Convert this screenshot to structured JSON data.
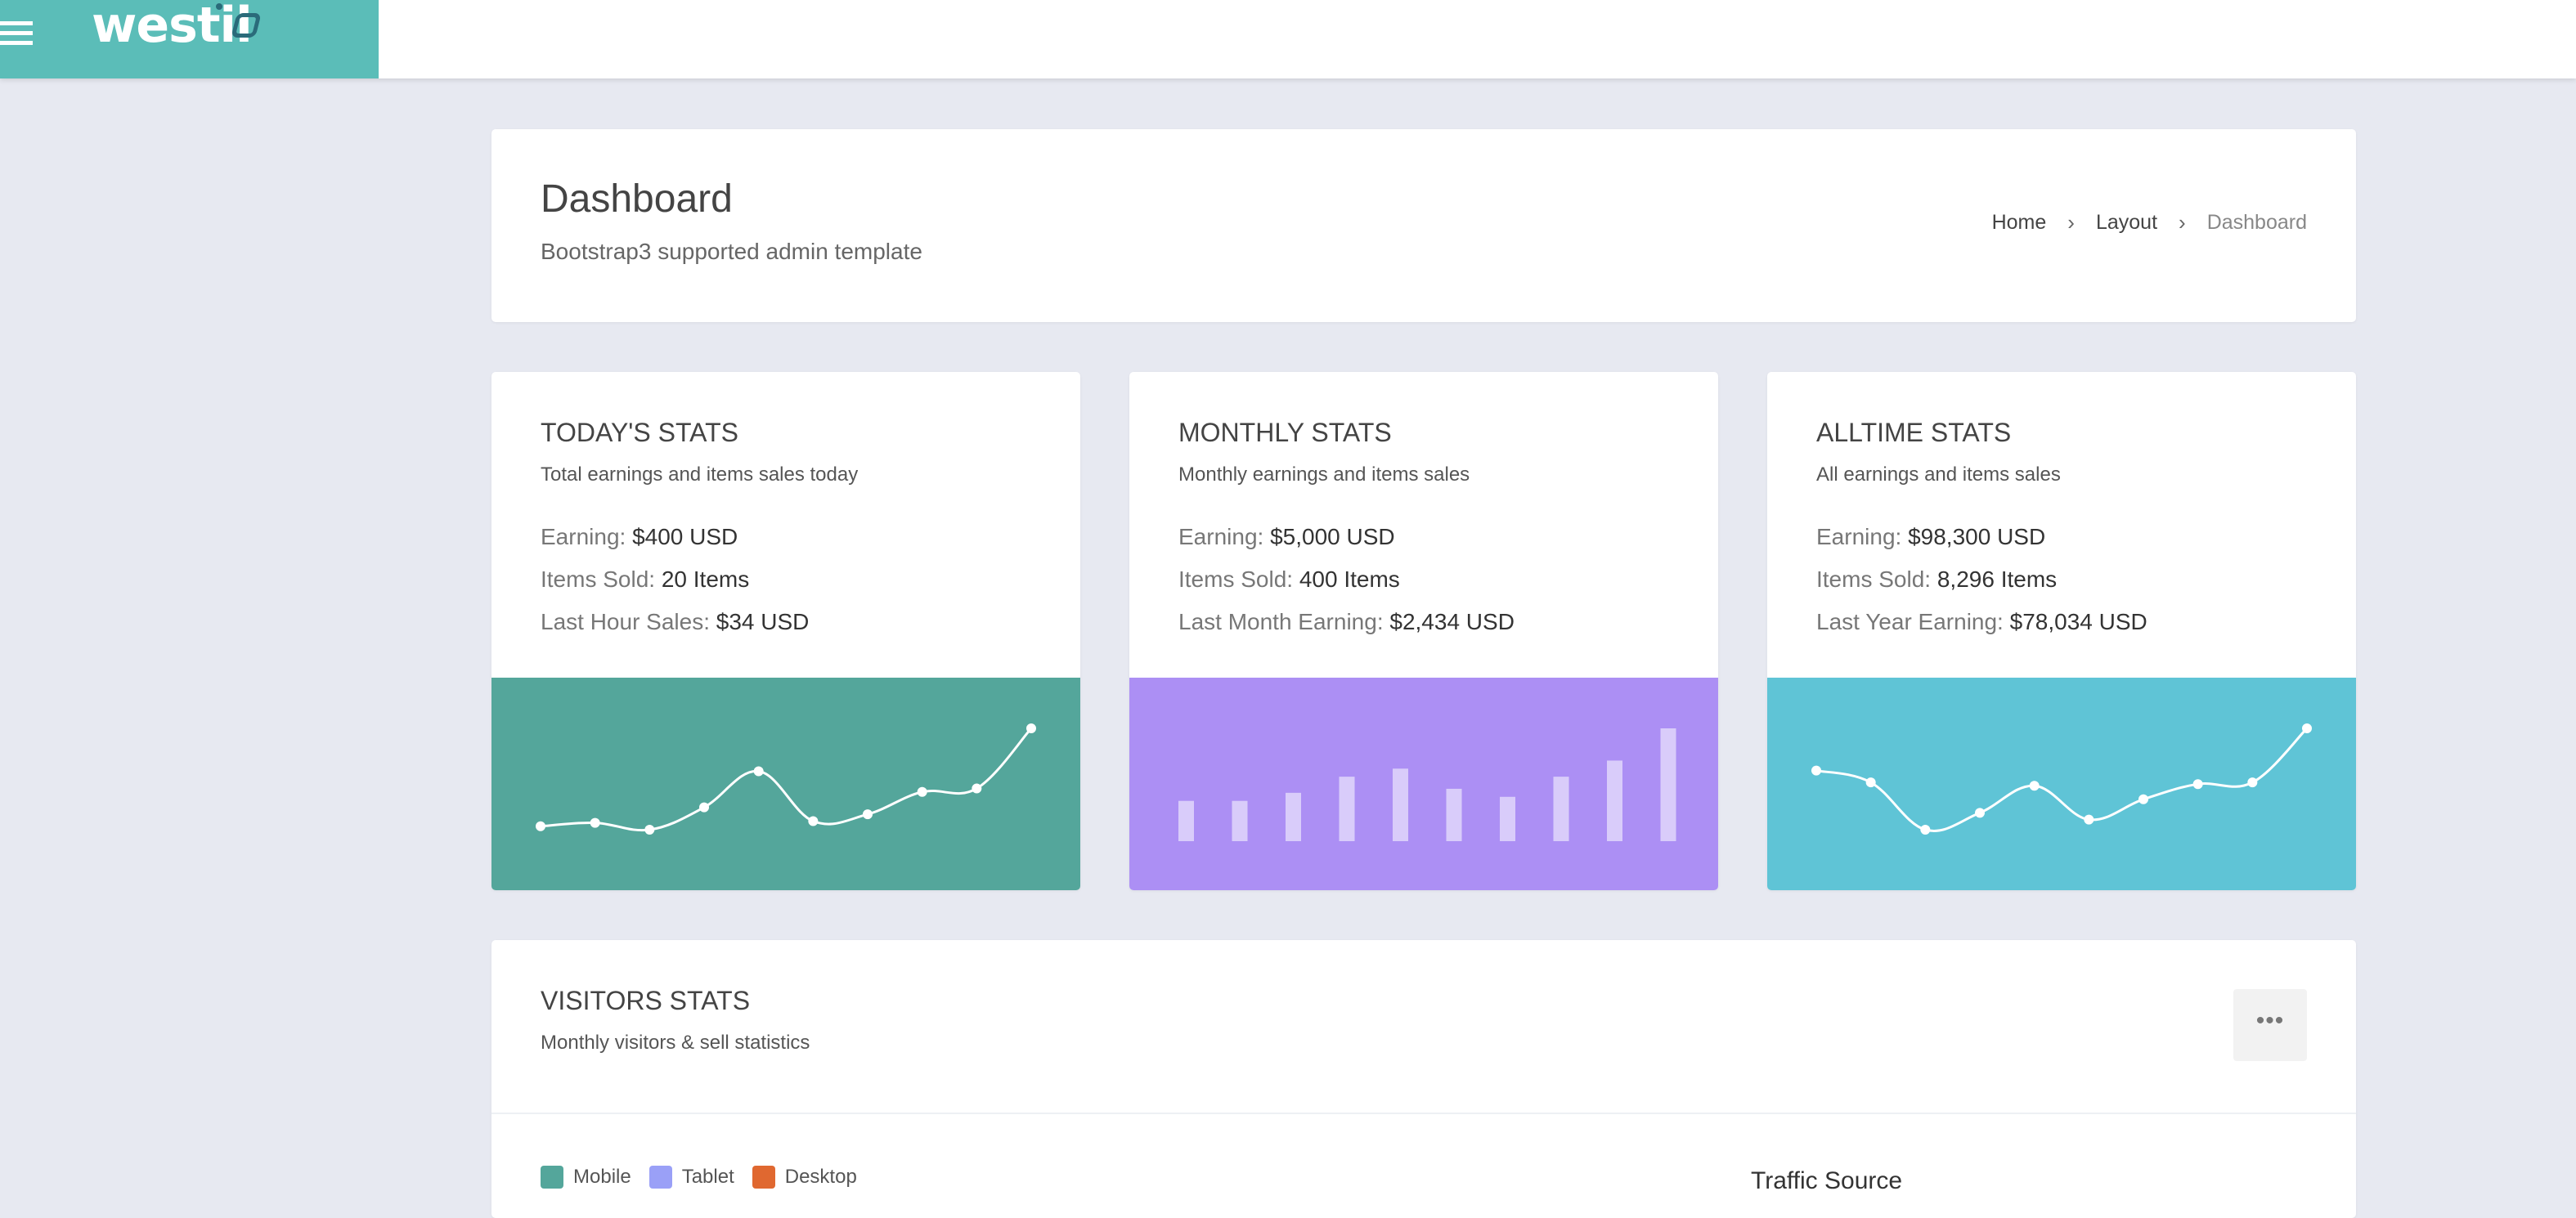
{
  "brand": {
    "logo_text": "westil",
    "color": "#5bbdb8"
  },
  "header": {
    "title": "Dashboard",
    "subtitle": "Bootstrap3 supported admin template",
    "breadcrumb": [
      "Home",
      "Layout",
      "Dashboard"
    ]
  },
  "stats": [
    {
      "title": "TODAY'S STATS",
      "desc": "Total earnings and items sales today",
      "rows": [
        {
          "label": "Earning:",
          "value": "$400 USD"
        },
        {
          "label": "Items Sold:",
          "value": "20 Items"
        },
        {
          "label": "Last Hour Sales:",
          "value": "$34 USD"
        }
      ],
      "chart": {
        "type": "line",
        "color": "#54a69b",
        "values": [
          5,
          7,
          3,
          16,
          37,
          8,
          12,
          25,
          27,
          62
        ]
      }
    },
    {
      "title": "MONTHLY STATS",
      "desc": "Monthly earnings and items sales",
      "rows": [
        {
          "label": "Earning:",
          "value": "$5,000 USD"
        },
        {
          "label": "Items Sold:",
          "value": "400 Items"
        },
        {
          "label": "Last Month Earning:",
          "value": "$2,434 USD"
        }
      ],
      "chart": {
        "type": "bar",
        "color": "#ac8ff4",
        "values": [
          5,
          5,
          6,
          8,
          9,
          6.5,
          5.5,
          8,
          10,
          14
        ]
      }
    },
    {
      "title": "ALLTIME STATS",
      "desc": "All earnings and items sales",
      "rows": [
        {
          "label": "Earning:",
          "value": "$98,300 USD"
        },
        {
          "label": "Items Sold:",
          "value": "8,296 Items"
        },
        {
          "label": "Last Year Earning:",
          "value": "$78,034 USD"
        }
      ],
      "chart": {
        "type": "line",
        "color": "#5fc4d6",
        "values": [
          35,
          28,
          0,
          10,
          26,
          6,
          18,
          27,
          28,
          60
        ]
      }
    }
  ],
  "visitors": {
    "title": "VISITORS STATS",
    "desc": "Monthly visitors & sell statistics",
    "more_label": "•••",
    "legend": [
      {
        "label": "Mobile",
        "color": "#54a69b"
      },
      {
        "label": "Tablet",
        "color": "#9aa0f7"
      },
      {
        "label": "Desktop",
        "color": "#e06830"
      }
    ],
    "traffic_title": "Traffic Source"
  }
}
